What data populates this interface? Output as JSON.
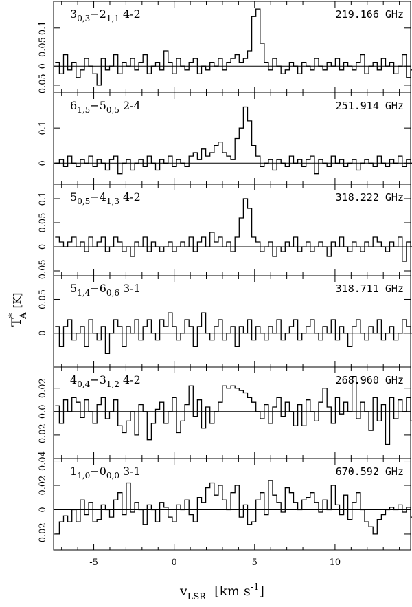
{
  "chart_data": {
    "type": "line",
    "layout": "six vertically stacked panels sharing the x axis",
    "xlabel_sym": "v",
    "xlabel_sub": "LSR",
    "xlabel_units": "[km s",
    "xlabel_exp": "-1",
    "xlabel_close": "]",
    "ylabel_sym": "T",
    "ylabel_sup": "*",
    "ylabel_sub": "A",
    "ylabel_units": "[K]",
    "xlim": [
      -7.5,
      14.7
    ],
    "x_ticks": [
      -5,
      0,
      5,
      10
    ],
    "x_tick_labels": [
      "-5",
      "0",
      "5",
      "10"
    ],
    "x_start": -7.4,
    "channel_width": 0.26,
    "panels": [
      {
        "transition": {
          "j1": "3",
          "k1": "0,3",
          "j2": "2",
          "k2": "1,1",
          "sym": "4-2"
        },
        "frequency": "219.166 GHz",
        "ylim": [
          -0.07,
          0.17
        ],
        "y_ticks": [
          -0.05,
          0,
          0.05,
          0.1
        ],
        "y_tick_labels": [
          "-0.05",
          "0",
          "0.05",
          "0.1"
        ],
        "values": [
          0.01,
          -0.02,
          0.03,
          -0.01,
          0.01,
          -0.03,
          -0.01,
          0.02,
          0.0,
          -0.02,
          -0.05,
          0.02,
          -0.01,
          0.0,
          0.03,
          -0.02,
          0.01,
          0.0,
          0.02,
          -0.01,
          0.01,
          0.03,
          -0.02,
          0.0,
          0.01,
          -0.01,
          0.04,
          0.01,
          -0.02,
          0.02,
          0.0,
          -0.01,
          0.01,
          0.02,
          -0.02,
          0.0,
          -0.01,
          0.01,
          0.0,
          0.02,
          -0.01,
          0.01,
          0.02,
          0.03,
          0.01,
          0.02,
          0.04,
          0.13,
          0.15,
          0.06,
          0.01,
          -0.01,
          0.02,
          0.0,
          -0.02,
          -0.01,
          0.01,
          0.0,
          -0.02,
          0.01,
          0.0,
          -0.01,
          0.02,
          0.0,
          -0.01,
          0.01,
          0.0,
          0.02,
          -0.01,
          0.01,
          0.0,
          -0.01,
          0.01,
          0.03,
          -0.02,
          0.0,
          0.01,
          -0.01,
          0.02,
          0.0,
          0.01,
          -0.02,
          0.0,
          0.03,
          -0.03,
          -0.01,
          0.02
        ]
      },
      {
        "transition": {
          "j1": "6",
          "k1": "1,5",
          "j2": "5",
          "k2": "0,5",
          "sym": "2-4"
        },
        "frequency": "251.914 GHz",
        "ylim": [
          -0.06,
          0.2
        ],
        "y_ticks": [
          0,
          0.1
        ],
        "y_tick_labels": [
          "0",
          "0.1"
        ],
        "values": [
          0.0,
          0.01,
          -0.01,
          0.02,
          0.0,
          -0.01,
          0.01,
          0.0,
          0.02,
          -0.01,
          0.01,
          0.0,
          -0.02,
          0.01,
          0.02,
          -0.03,
          0.0,
          0.01,
          -0.02,
          0.0,
          0.01,
          -0.01,
          0.02,
          0.0,
          -0.02,
          0.01,
          0.0,
          0.02,
          -0.01,
          0.01,
          0.0,
          -0.01,
          0.02,
          0.03,
          0.01,
          0.04,
          0.02,
          0.03,
          0.05,
          0.06,
          0.03,
          0.02,
          0.01,
          0.07,
          0.1,
          0.16,
          0.12,
          0.05,
          0.02,
          -0.01,
          0.0,
          0.01,
          -0.02,
          0.01,
          0.0,
          -0.01,
          0.02,
          0.0,
          0.01,
          -0.01,
          0.01,
          0.02,
          -0.03,
          0.01,
          0.0,
          -0.01,
          0.02,
          0.0,
          0.01,
          -0.01,
          0.0,
          0.01,
          -0.02,
          0.0,
          0.01,
          0.0,
          -0.01,
          0.02,
          0.0,
          -0.01,
          0.01,
          0.0,
          0.02,
          -0.01,
          0.01,
          0.0,
          -0.02,
          0.01
        ]
      },
      {
        "transition": {
          "j1": "5",
          "k1": "0,5",
          "j2": "4",
          "k2": "1,3",
          "sym": "4-2"
        },
        "frequency": "318.222 GHz",
        "ylim": [
          -0.06,
          0.13
        ],
        "y_ticks": [
          -0.05,
          0,
          0.05,
          0.1
        ],
        "y_tick_labels": [
          "-0.05",
          "0",
          "0.05",
          "0.1"
        ],
        "values": [
          0.02,
          0.01,
          0.0,
          0.01,
          0.02,
          0.0,
          0.01,
          -0.01,
          0.02,
          0.0,
          0.01,
          0.02,
          -0.01,
          0.0,
          0.02,
          0.01,
          -0.01,
          0.0,
          -0.02,
          0.01,
          0.0,
          0.02,
          -0.01,
          0.01,
          0.0,
          -0.01,
          0.0,
          0.01,
          -0.01,
          0.0,
          0.01,
          0.0,
          0.02,
          -0.01,
          0.01,
          0.02,
          0.0,
          0.03,
          0.01,
          0.02,
          0.0,
          0.01,
          -0.01,
          0.02,
          0.06,
          0.1,
          0.08,
          0.02,
          0.01,
          -0.01,
          0.0,
          0.01,
          -0.02,
          0.0,
          -0.01,
          0.01,
          0.0,
          0.02,
          -0.01,
          0.0,
          0.01,
          -0.01,
          0.0,
          0.01,
          0.0,
          -0.02,
          0.01,
          0.0,
          0.02,
          0.0,
          -0.01,
          0.01,
          0.0,
          -0.01,
          0.01,
          0.0,
          0.02,
          0.01,
          0.0,
          -0.01,
          0.01,
          0.0,
          0.02,
          -0.03,
          0.01,
          0.0,
          -0.01,
          0.01
        ]
      },
      {
        "transition": {
          "j1": "5",
          "k1": "1,4",
          "j2": "6",
          "k2": "0,6",
          "sym": "3-1"
        },
        "frequency": "318.711 GHz",
        "ylim": [
          -0.05,
          0.085
        ],
        "y_ticks": [
          0,
          0.05
        ],
        "y_tick_labels": [
          "0",
          "0.05"
        ],
        "values": [
          0.01,
          -0.02,
          0.01,
          0.02,
          -0.01,
          0.0,
          0.01,
          -0.02,
          0.02,
          0.0,
          -0.01,
          0.01,
          -0.03,
          0.0,
          0.02,
          0.01,
          -0.02,
          0.01,
          0.0,
          0.02,
          -0.01,
          0.01,
          0.02,
          0.0,
          -0.01,
          0.02,
          0.01,
          0.03,
          0.01,
          -0.01,
          0.0,
          0.02,
          0.01,
          -0.02,
          0.01,
          0.03,
          0.0,
          -0.01,
          0.01,
          0.02,
          -0.01,
          0.0,
          0.01,
          -0.02,
          0.01,
          0.0,
          0.02,
          -0.01,
          0.01,
          0.0,
          -0.01,
          0.01,
          0.0,
          0.02,
          -0.01,
          0.0,
          0.01,
          0.02,
          -0.01,
          0.0,
          0.01,
          0.02,
          0.0,
          -0.01,
          0.01,
          0.0,
          0.02,
          -0.01,
          0.01,
          0.0,
          -0.02,
          0.01,
          0.02,
          0.0,
          -0.01,
          0.01,
          0.0,
          0.02,
          -0.01,
          0.0,
          0.01,
          -0.01,
          0.0,
          0.02,
          0.01,
          0.0,
          -0.01
        ]
      },
      {
        "transition": {
          "j1": "4",
          "k1": "0,4",
          "j2": "3",
          "k2": "1,2",
          "sym": "4-2"
        },
        "frequency": "268.960 GHz",
        "ylim": [
          -0.04,
          0.038
        ],
        "y_ticks": [
          -0.02,
          0,
          0.02
        ],
        "y_tick_labels": [
          "-0.02",
          "0.0",
          "0.02"
        ],
        "values": [
          0.005,
          -0.01,
          0.01,
          0.0,
          0.012,
          0.008,
          -0.005,
          0.01,
          0.0,
          -0.01,
          0.006,
          0.012,
          -0.006,
          0.0,
          0.01,
          -0.012,
          -0.018,
          -0.008,
          0.0,
          -0.02,
          0.006,
          0.0,
          -0.024,
          -0.01,
          0.002,
          0.008,
          -0.01,
          0.0,
          0.012,
          -0.018,
          -0.008,
          0.006,
          0.022,
          -0.004,
          0.01,
          -0.014,
          0.004,
          -0.01,
          0.0,
          0.008,
          0.022,
          0.02,
          0.022,
          0.02,
          0.018,
          0.016,
          0.012,
          0.008,
          0.0,
          -0.006,
          0.006,
          -0.01,
          0.004,
          0.012,
          -0.004,
          0.008,
          0.0,
          -0.012,
          0.006,
          -0.012,
          0.01,
          0.0,
          -0.008,
          0.008,
          0.02,
          0.004,
          -0.01,
          0.012,
          -0.002,
          0.008,
          0.0,
          0.03,
          -0.006,
          0.008,
          0.0,
          -0.016,
          0.012,
          -0.008,
          0.006,
          -0.028,
          0.012,
          -0.006,
          0.01,
          0.0,
          0.012,
          -0.008,
          0.006
        ]
      },
      {
        "transition": {
          "j1": "1",
          "k1": "1,0",
          "j2": "0",
          "k2": "0,0",
          "sym": "3-1"
        },
        "frequency": "670.592 GHz",
        "ylim": [
          -0.033,
          0.042
        ],
        "y_ticks": [
          -0.02,
          0,
          0.02,
          0.04
        ],
        "y_tick_labels": [
          "-0.02",
          "0",
          "0.02",
          "0.04"
        ],
        "values": [
          -0.02,
          -0.01,
          -0.005,
          -0.01,
          0.0,
          -0.01,
          0.008,
          -0.004,
          0.006,
          -0.01,
          -0.008,
          0.004,
          0.0,
          -0.006,
          0.008,
          0.014,
          -0.004,
          0.022,
          -0.002,
          0.006,
          0.0,
          -0.012,
          0.004,
          0.0,
          -0.01,
          0.006,
          0.002,
          -0.006,
          -0.01,
          0.004,
          0.0,
          0.008,
          -0.004,
          -0.01,
          0.01,
          0.006,
          0.018,
          0.022,
          0.012,
          0.02,
          0.008,
          0.0,
          0.014,
          0.02,
          -0.006,
          0.004,
          -0.012,
          -0.01,
          0.008,
          0.014,
          -0.004,
          0.024,
          0.012,
          0.006,
          -0.002,
          0.018,
          0.014,
          0.006,
          0.0,
          0.008,
          0.01,
          0.014,
          0.006,
          -0.002,
          0.008,
          0.0,
          0.02,
          0.004,
          -0.004,
          0.012,
          -0.008,
          0.006,
          0.014,
          0.0,
          -0.01,
          -0.014,
          -0.02,
          -0.008,
          -0.004,
          0.0,
          0.002,
          0.0,
          0.004,
          -0.002,
          0.002,
          -0.006,
          -0.004
        ]
      }
    ]
  }
}
